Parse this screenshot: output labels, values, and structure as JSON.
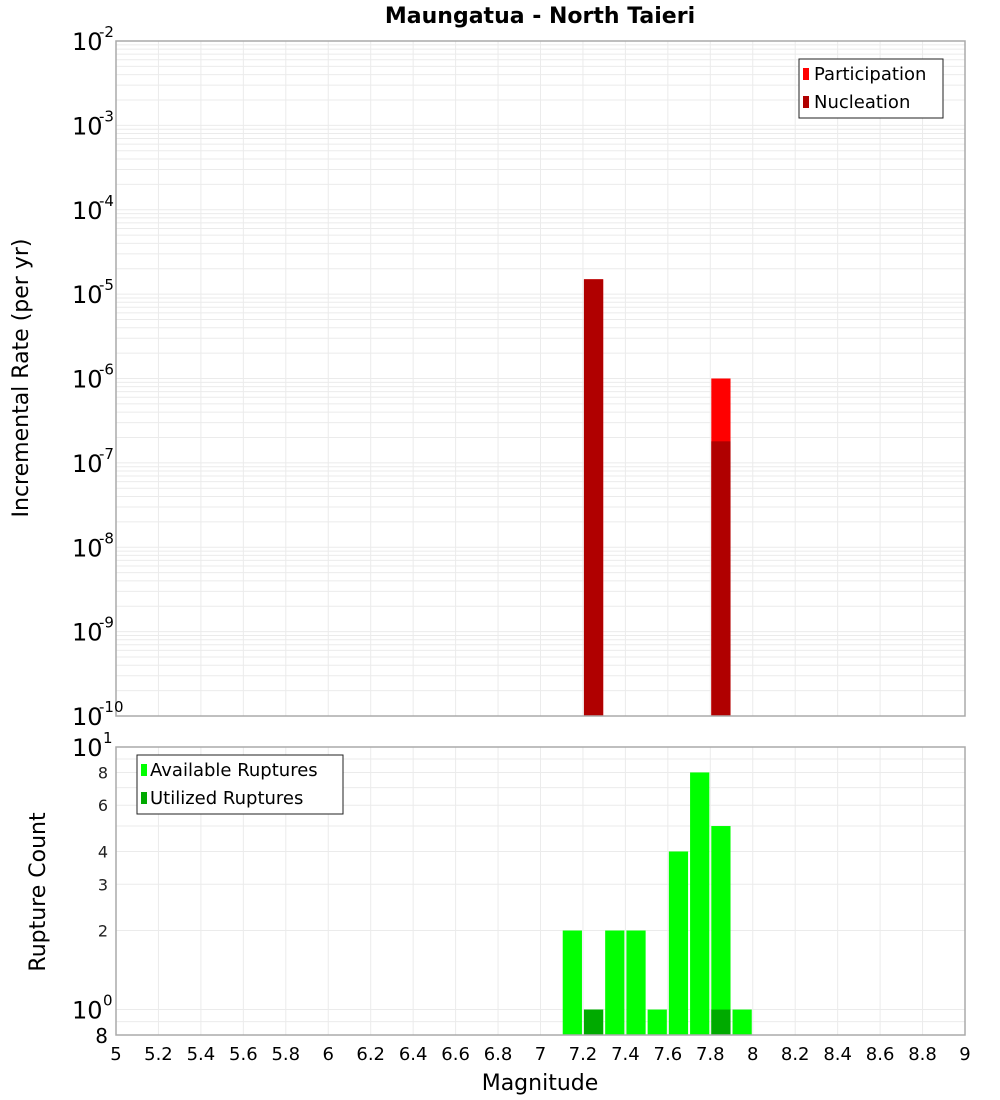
{
  "chart_data": [
    {
      "type": "bar",
      "title": "Maungatua - North Taieri",
      "xlabel": "",
      "ylabel": "Incremental Rate (per yr)",
      "yscale": "log",
      "ylim": [
        1e-10,
        0.01
      ],
      "xlim": [
        5,
        9
      ],
      "grid": true,
      "legend_position": "top-right",
      "y_ticks": [
        "10^-2",
        "10^-3",
        "10^-4",
        "10^-5",
        "10^-6",
        "10^-7",
        "10^-8",
        "10^-9",
        "10^-10"
      ],
      "bin_width": 0.1,
      "x": [
        7.25,
        7.85
      ],
      "series": [
        {
          "name": "Participation",
          "color": "#ff0000",
          "values": [
            1.5e-05,
            1e-06
          ]
        },
        {
          "name": "Nucleation",
          "color": "#b00000",
          "values": [
            1.5e-05,
            1.8e-07
          ]
        }
      ]
    },
    {
      "type": "bar",
      "title": "",
      "xlabel": "Magnitude",
      "ylabel": "Rupture Count",
      "yscale": "log",
      "ylim": [
        0.8,
        10
      ],
      "xlim": [
        5,
        9
      ],
      "grid": true,
      "legend_position": "top-left",
      "y_ticks": [
        "10^1",
        "8",
        "6",
        "4",
        "3",
        "2",
        "10^0",
        "8"
      ],
      "x_ticks": [
        "5",
        "5.2",
        "5.4",
        "5.6",
        "5.8",
        "6",
        "6.2",
        "6.4",
        "6.6",
        "6.8",
        "7",
        "7.2",
        "7.4",
        "7.6",
        "7.8",
        "8",
        "8.2",
        "8.4",
        "8.6",
        "8.8",
        "9"
      ],
      "bin_width": 0.1,
      "x": [
        7.15,
        7.25,
        7.35,
        7.45,
        7.55,
        7.65,
        7.75,
        7.85,
        7.95
      ],
      "series": [
        {
          "name": "Available Ruptures",
          "color": "#00ff00",
          "values": [
            2,
            1,
            2,
            2,
            1,
            4,
            8,
            5,
            1
          ]
        },
        {
          "name": "Utilized Ruptures",
          "color": "#00aa00",
          "values": [
            0,
            1,
            0,
            0,
            0,
            0,
            0,
            1,
            0
          ]
        }
      ]
    }
  ],
  "labels": {
    "title": "Maungatua - North Taieri",
    "top_ylabel": "Incremental Rate (per yr)",
    "bottom_ylabel": "Rupture Count",
    "xlabel": "Magnitude",
    "legend_top": [
      "Participation",
      "Nucleation"
    ],
    "legend_bottom": [
      "Available Ruptures",
      "Utilized Ruptures"
    ]
  },
  "colors": {
    "participation": "#ff0000",
    "nucleation": "#b00000",
    "available": "#00ff00",
    "utilized": "#00aa00",
    "grid": "#ebebeb",
    "axis": "#aaaaaa"
  }
}
